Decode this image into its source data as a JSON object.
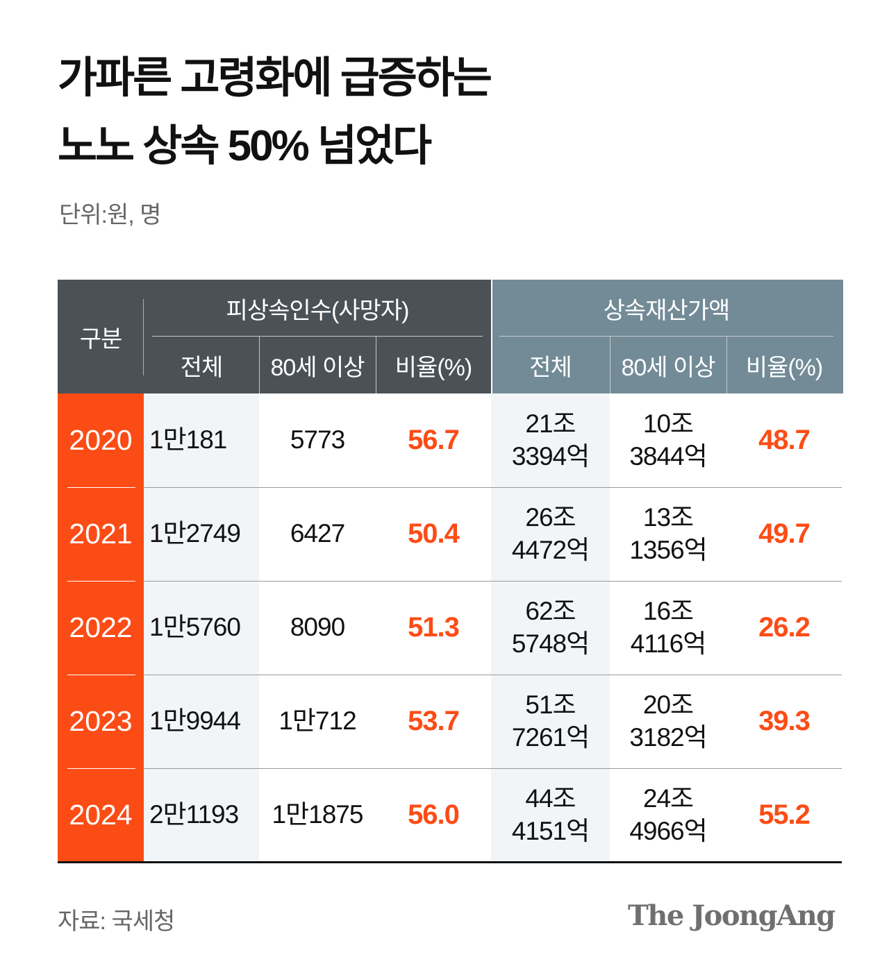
{
  "title_lines": [
    "가파른 고령화에 급증하는",
    "노노 상속 50% 넘었다"
  ],
  "unit": "단위:원, 명",
  "source": "자료: 국세청",
  "logo": "The JoongAng",
  "colors": {
    "accent": "#fc4c16",
    "header_left": "#4a5157",
    "header_right": "#728b97",
    "shade": "#f2f5f7"
  },
  "chart_data": {
    "type": "table",
    "corner_header": "구분",
    "groups": [
      {
        "label": "피상속인수(사망자)",
        "columns": [
          "전체",
          "80세 이상",
          "비율(%)"
        ]
      },
      {
        "label": "상속재산가액",
        "columns": [
          "전체",
          "80세 이상",
          "비율(%)"
        ]
      }
    ],
    "rows": [
      {
        "year": "2020",
        "cells": [
          "1만181",
          "5773",
          "56.7",
          "21조\n3394억",
          "10조\n3844억",
          "48.7"
        ]
      },
      {
        "year": "2021",
        "cells": [
          "1만2749",
          "6427",
          "50.4",
          "26조\n4472억",
          "13조\n1356억",
          "49.7"
        ]
      },
      {
        "year": "2022",
        "cells": [
          "1만5760",
          "8090",
          "51.3",
          "62조\n5748억",
          "16조\n4116억",
          "26.2"
        ]
      },
      {
        "year": "2023",
        "cells": [
          "1만9944",
          "1만712",
          "53.7",
          "51조\n7261억",
          "20조\n3182억",
          "39.3"
        ]
      },
      {
        "year": "2024",
        "cells": [
          "2만1193",
          "1만1875",
          "56.0",
          "44조\n4151억",
          "24조\n4966억",
          "55.2"
        ]
      }
    ]
  }
}
